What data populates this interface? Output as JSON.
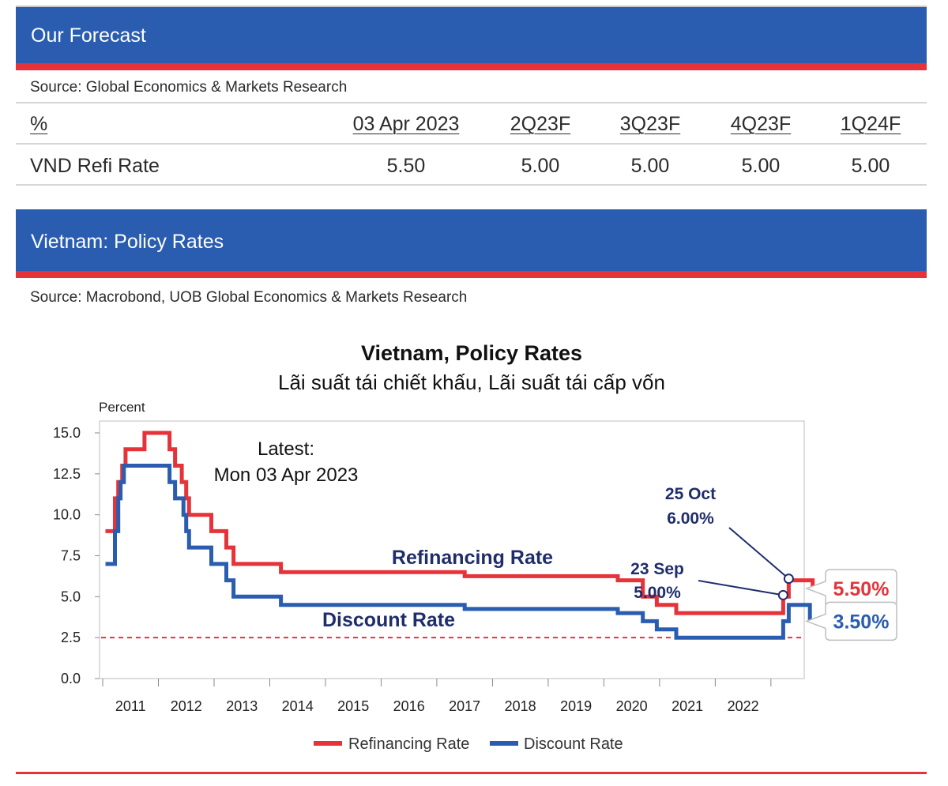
{
  "forecast": {
    "title": "Our Forecast",
    "source": "Source: Global Economics & Markets Research",
    "columns": [
      "%",
      "03 Apr 2023",
      "2Q23F",
      "3Q23F",
      "4Q23F",
      "1Q24F"
    ],
    "row": {
      "label": "VND Refi Rate",
      "values": [
        "5.50",
        "5.00",
        "5.00",
        "5.00",
        "5.00"
      ]
    }
  },
  "policy": {
    "title": "Vietnam: Policy Rates",
    "source": "Source: Macrobond, UOB Global Economics & Markets Research"
  },
  "colors": {
    "band": "#2a5db0",
    "accent_red": "#e63339",
    "refi": "#e63339",
    "discount": "#2a5db0",
    "annotation": "#1f2d6b"
  },
  "chart_data": {
    "type": "line",
    "title": "Vietnam, Policy Rates",
    "subtitle": "Lãi suất tái chiết khấu, Lãi suất tái cấp vốn",
    "ylabel": "Percent",
    "ylim": [
      0,
      15.5
    ],
    "yticks": [
      "15.0",
      "12.5",
      "10.0",
      "7.5",
      "5.0",
      "2.5",
      "0.0"
    ],
    "ytick_values": [
      15,
      12.5,
      10,
      7.5,
      5,
      2.5,
      0
    ],
    "xlim": [
      2010.5,
      2022.8
    ],
    "xticks": [
      "2011",
      "2012",
      "2013",
      "2014",
      "2015",
      "2016",
      "2017",
      "2018",
      "2019",
      "2020",
      "2021",
      "2022"
    ],
    "reference_line": 2.5,
    "series": [
      {
        "name": "Refinancing Rate",
        "end_label": "5.50%",
        "points": [
          [
            2010.55,
            9
          ],
          [
            2010.72,
            9
          ],
          [
            2010.72,
            11
          ],
          [
            2010.78,
            11
          ],
          [
            2010.78,
            12
          ],
          [
            2010.85,
            12
          ],
          [
            2010.85,
            13
          ],
          [
            2010.91,
            13
          ],
          [
            2010.91,
            14
          ],
          [
            2011.25,
            14
          ],
          [
            2011.25,
            15
          ],
          [
            2011.7,
            15
          ],
          [
            2011.7,
            14
          ],
          [
            2011.8,
            14
          ],
          [
            2011.8,
            13
          ],
          [
            2011.92,
            13
          ],
          [
            2011.92,
            12
          ],
          [
            2012.0,
            12
          ],
          [
            2012.0,
            11
          ],
          [
            2012.05,
            11
          ],
          [
            2012.05,
            10
          ],
          [
            2012.45,
            10
          ],
          [
            2012.45,
            9
          ],
          [
            2012.72,
            9
          ],
          [
            2012.72,
            8
          ],
          [
            2012.85,
            8
          ],
          [
            2012.85,
            7
          ],
          [
            2013.7,
            7
          ],
          [
            2013.7,
            6.5
          ],
          [
            2017.0,
            6.5
          ],
          [
            2017.0,
            6.25
          ],
          [
            2019.75,
            6.25
          ],
          [
            2019.75,
            6.0
          ],
          [
            2020.2,
            6.0
          ],
          [
            2020.2,
            5.0
          ],
          [
            2020.45,
            5.0
          ],
          [
            2020.45,
            4.5
          ],
          [
            2020.8,
            4.5
          ],
          [
            2020.8,
            4.0
          ],
          [
            2022.72,
            4.0
          ],
          [
            2022.72,
            5.0
          ],
          [
            2022.82,
            5.0
          ],
          [
            2022.82,
            6.0
          ],
          [
            2023.25,
            6.0
          ],
          [
            2023.25,
            5.5
          ]
        ]
      },
      {
        "name": "Discount Rate",
        "end_label": "3.50%",
        "points": [
          [
            2010.55,
            7
          ],
          [
            2010.72,
            7
          ],
          [
            2010.72,
            9
          ],
          [
            2010.78,
            9
          ],
          [
            2010.78,
            11
          ],
          [
            2010.82,
            11
          ],
          [
            2010.82,
            12
          ],
          [
            2010.88,
            12
          ],
          [
            2010.88,
            13
          ],
          [
            2011.7,
            13
          ],
          [
            2011.7,
            12
          ],
          [
            2011.8,
            12
          ],
          [
            2011.8,
            11
          ],
          [
            2011.95,
            11
          ],
          [
            2011.95,
            10
          ],
          [
            2012.0,
            10
          ],
          [
            2012.0,
            9
          ],
          [
            2012.05,
            9
          ],
          [
            2012.05,
            8
          ],
          [
            2012.45,
            8
          ],
          [
            2012.45,
            7
          ],
          [
            2012.72,
            7
          ],
          [
            2012.72,
            6
          ],
          [
            2012.85,
            6
          ],
          [
            2012.85,
            5
          ],
          [
            2013.7,
            5
          ],
          [
            2013.7,
            4.5
          ],
          [
            2017.0,
            4.5
          ],
          [
            2017.0,
            4.25
          ],
          [
            2019.75,
            4.25
          ],
          [
            2019.75,
            4.0
          ],
          [
            2020.2,
            4.0
          ],
          [
            2020.2,
            3.5
          ],
          [
            2020.45,
            3.5
          ],
          [
            2020.45,
            3.0
          ],
          [
            2020.8,
            3.0
          ],
          [
            2020.8,
            2.5
          ],
          [
            2022.72,
            2.5
          ],
          [
            2022.72,
            3.5
          ],
          [
            2022.82,
            3.5
          ],
          [
            2022.82,
            4.5
          ],
          [
            2023.2,
            4.5
          ],
          [
            2023.2,
            3.5
          ]
        ]
      }
    ],
    "annotations": {
      "latest": "Latest:",
      "latest_date": "Mon 03 Apr 2023",
      "refi_label": "Refinancing Rate",
      "discount_label": "Discount Rate",
      "sep_date": "23 Sep",
      "sep_value": "5.00%",
      "sep_point": [
        2022.72,
        5.0
      ],
      "oct_date": "25 Oct",
      "oct_value": "6.00%",
      "oct_point": [
        2022.82,
        6.0
      ]
    },
    "legend": [
      "Refinancing Rate",
      "Discount Rate"
    ],
    "legend_position": "bottom-center"
  }
}
